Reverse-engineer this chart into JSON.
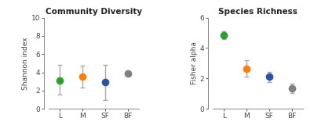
{
  "panel1": {
    "title": "Community Diversity",
    "ylabel": "Shannon index",
    "categories": [
      "L",
      "M",
      "SF",
      "BF"
    ],
    "means": [
      3.1,
      3.5,
      2.9,
      3.85
    ],
    "errors_low": [
      1.5,
      1.2,
      1.9,
      0.0
    ],
    "errors_high": [
      1.7,
      1.2,
      1.9,
      0.0
    ],
    "colors": [
      "#2ca02c",
      "#ff7f0e",
      "#2955a0",
      "#808080"
    ],
    "ylim": [
      0,
      10
    ],
    "yticks": [
      0,
      2,
      4,
      6,
      8,
      10
    ]
  },
  "panel2": {
    "title": "Species Richness",
    "ylabel": "Fisher alpha",
    "categories": [
      "L",
      "M",
      "SF",
      "BF"
    ],
    "means": [
      4.85,
      2.65,
      2.1,
      1.35
    ],
    "errors_low": [
      0.28,
      0.55,
      0.35,
      0.3
    ],
    "errors_high": [
      0.28,
      0.55,
      0.35,
      0.3
    ],
    "colors": [
      "#2ca02c",
      "#ff7f0e",
      "#2955a0",
      "#808080"
    ],
    "ylim": [
      0,
      6
    ],
    "yticks": [
      0,
      2,
      4,
      6
    ]
  },
  "background_color": "#ffffff",
  "error_color": "#aaaaaa",
  "marker_size": 7,
  "linewidth": 1.0,
  "capsize": 2.5
}
